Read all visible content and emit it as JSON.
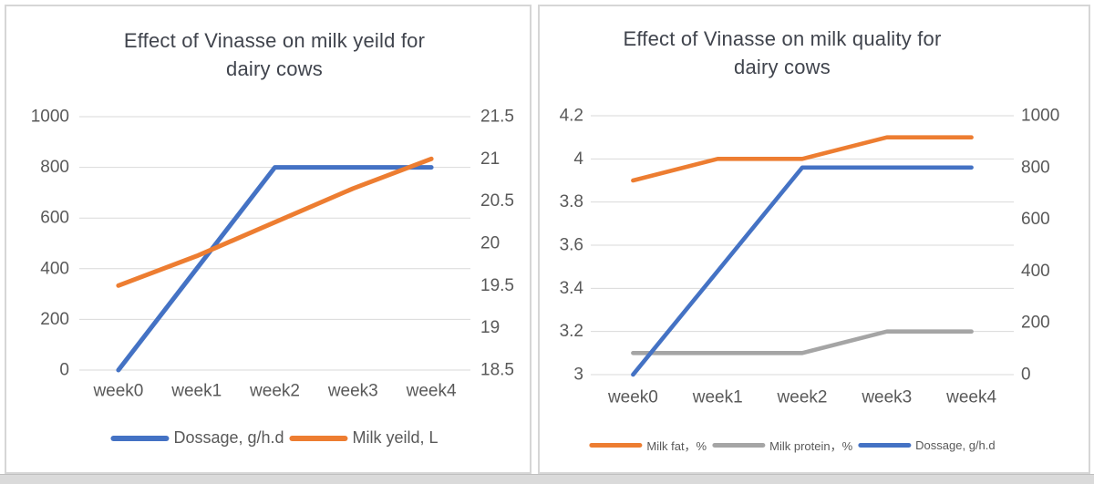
{
  "page": {
    "background": "#ffffff",
    "bottom_strip_color": "#dadada"
  },
  "styles": {
    "grid_color": "#d9d9d9",
    "axis_text_color": "#595959",
    "title_text_color": "#40444d",
    "legend_text_color": "#595959",
    "panel_border_color": "#d6d6d6",
    "accent_blue": "#4472C4",
    "accent_orange": "#ED7D31",
    "accent_gray": "#A5A5A5"
  },
  "chart_data": [
    {
      "type": "line",
      "title": "Effect of Vinasse on milk yeild for dairy cows",
      "title_lines": [
        "Effect of Vinasse on milk yeild for",
        "dairy cows"
      ],
      "categories": [
        "week0",
        "week1",
        "week2",
        "week3",
        "week4"
      ],
      "left_axis": {
        "min": 0,
        "max": 1000,
        "tick_labels": [
          "0",
          "200",
          "400",
          "600",
          "800",
          "1000"
        ]
      },
      "right_axis": {
        "min": 18.5,
        "max": 21.5,
        "tick_labels": [
          "18.5",
          "19",
          "19.5",
          "20",
          "20.5",
          "21",
          "21.5"
        ]
      },
      "grid": "horizontal gridlines aligned to left axis",
      "legend_position": "bottom",
      "series": [
        {
          "name": "Dossage, g/h.d",
          "axis": "left",
          "color": "#4472C4",
          "values": [
            0,
            400,
            800,
            800,
            800
          ]
        },
        {
          "name": "Milk yeild, L",
          "axis": "right",
          "color": "#ED7D31",
          "values": [
            19.5,
            19.85,
            20.25,
            20.65,
            21
          ]
        }
      ]
    },
    {
      "type": "line",
      "title": "Effect of Vinasse on milk quality for dairy cows",
      "title_lines": [
        "Effect of Vinasse on milk quality for",
        "dairy cows"
      ],
      "categories": [
        "week0",
        "week1",
        "week2",
        "week3",
        "week4"
      ],
      "left_axis": {
        "min": 3,
        "max": 4.2,
        "tick_labels": [
          "3",
          "3.2",
          "3.4",
          "3.6",
          "3.8",
          "4",
          "4.2"
        ]
      },
      "right_axis": {
        "min": 0,
        "max": 1000,
        "tick_labels": [
          "0",
          "200",
          "400",
          "600",
          "800",
          "1000"
        ]
      },
      "grid": "horizontal gridlines aligned to left axis",
      "legend_position": "bottom",
      "series": [
        {
          "name": "Milk fat，%",
          "axis": "left",
          "color": "#ED7D31",
          "values": [
            3.9,
            4,
            4,
            4.1,
            4.1
          ]
        },
        {
          "name": "Milk protein，%",
          "axis": "left",
          "color": "#A5A5A5",
          "values": [
            3.1,
            3.1,
            3.1,
            3.2,
            3.2
          ]
        },
        {
          "name": "Dossage, g/h.d",
          "axis": "right",
          "color": "#4472C4",
          "values": [
            0,
            400,
            800,
            800,
            800
          ]
        }
      ]
    }
  ]
}
